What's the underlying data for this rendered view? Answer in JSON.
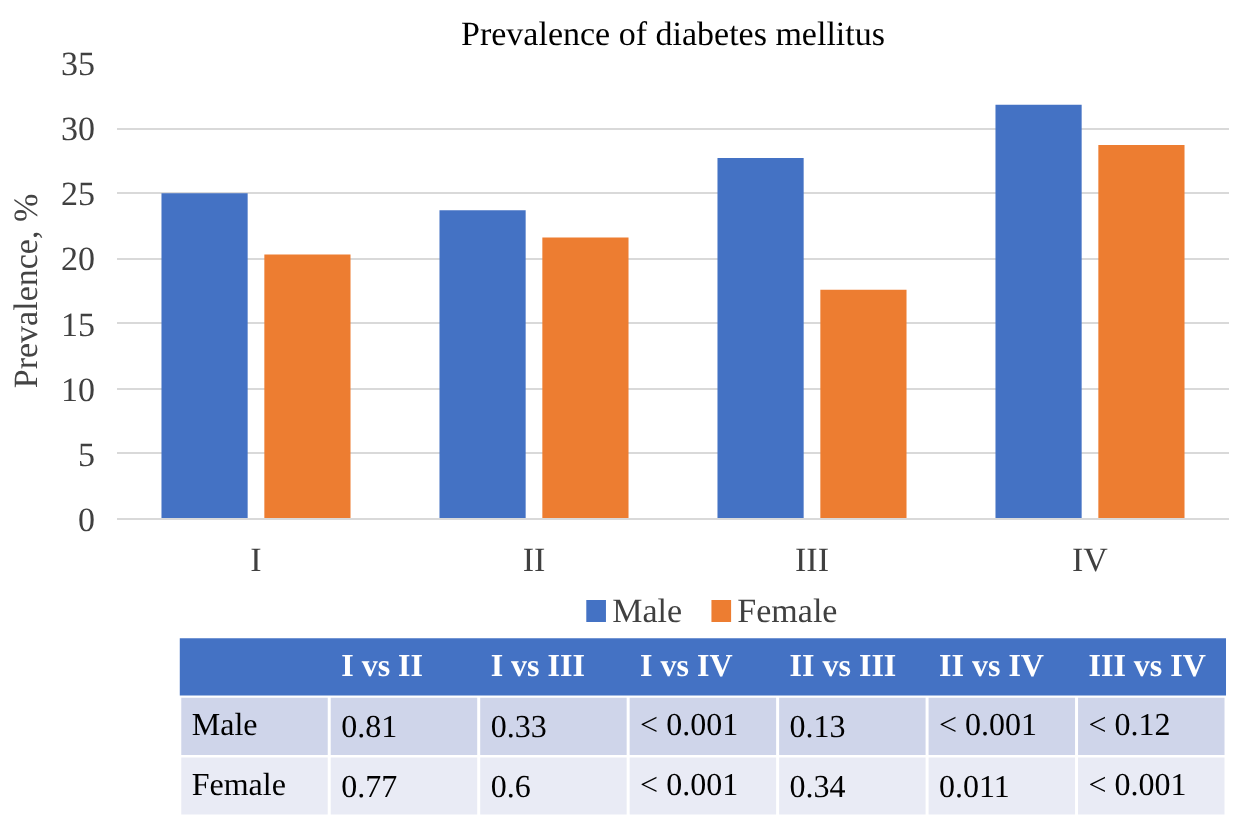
{
  "chart_data": [
    {
      "type": "bar",
      "title": "Prevalence of diabetes mellitus",
      "ylabel": "Prevalence, %",
      "categories": [
        "I",
        "II",
        "III",
        "IV"
      ],
      "series": [
        {
          "name": "Male",
          "color": "#4472c4",
          "values": [
            25.0,
            23.7,
            27.7,
            31.8
          ]
        },
        {
          "name": "Female",
          "color": "#ed7d31",
          "values": [
            20.3,
            21.6,
            17.6,
            28.7
          ]
        }
      ],
      "ylim": [
        0,
        35
      ],
      "yticks": [
        0,
        5,
        10,
        15,
        20,
        25,
        30,
        35
      ],
      "grid": "y",
      "legend": "bottom"
    },
    {
      "type": "other",
      "categories": [
        null,
        "I vs II",
        "I vs III",
        "I vs IV",
        "II vs III",
        "II vs IV",
        "III vs IV"
      ],
      "y_categories": [
        "Male",
        "Female"
      ],
      "cell_labels": [
        [
          "0.81",
          "0.33",
          "< 0.001",
          "0.13",
          "< 0.001",
          "< 0.12"
        ],
        [
          "0.77",
          "0.6",
          "< 0.001",
          "0.34",
          "0.011",
          "< 0.001"
        ]
      ]
    }
  ]
}
